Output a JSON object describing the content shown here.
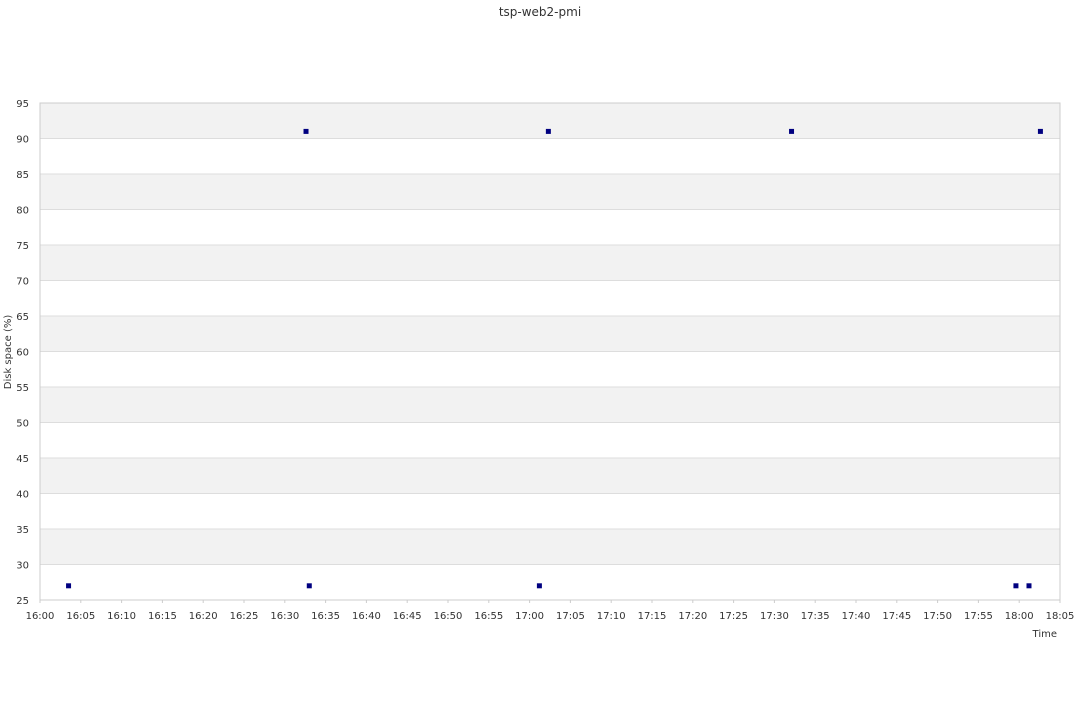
{
  "chart_data": {
    "type": "scatter",
    "title": "tsp-web2-pmi",
    "xlabel": "Time",
    "ylabel": "Disk space (%)",
    "xlim": [
      "16:00",
      "18:05"
    ],
    "ylim": [
      25,
      95
    ],
    "x_ticks": [
      "16:00",
      "16:05",
      "16:10",
      "16:15",
      "16:20",
      "16:25",
      "16:30",
      "16:35",
      "16:40",
      "16:45",
      "16:50",
      "16:55",
      "17:00",
      "17:05",
      "17:10",
      "17:15",
      "17:20",
      "17:25",
      "17:30",
      "17:35",
      "17:40",
      "17:45",
      "17:50",
      "17:55",
      "18:00",
      "18:05"
    ],
    "y_ticks": [
      25,
      30,
      35,
      40,
      45,
      50,
      55,
      60,
      65,
      70,
      75,
      80,
      85,
      90,
      95
    ],
    "grid": true,
    "series": [
      {
        "points": [
          {
            "x": "16:03.5",
            "y": 27
          },
          {
            "x": "16:32.6",
            "y": 91
          },
          {
            "x": "16:33",
            "y": 27
          },
          {
            "x": "17:01.2",
            "y": 27
          },
          {
            "x": "17:02.3",
            "y": 91
          },
          {
            "x": "17:32.1",
            "y": 91
          },
          {
            "x": "17:59.6",
            "y": 27
          },
          {
            "x": "18:01.2",
            "y": 27
          },
          {
            "x": "18:02.6",
            "y": 91
          }
        ]
      }
    ],
    "colors": {
      "marker": "#000080",
      "band": "#f2f2f2",
      "grid": "#dddddd",
      "text": "#333333"
    }
  }
}
